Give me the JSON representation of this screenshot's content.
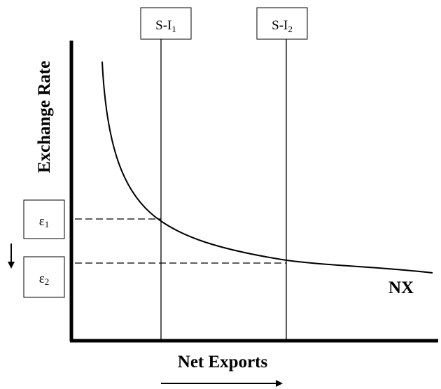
{
  "diagram": {
    "y_axis_label": "Exchange Rate",
    "x_axis_label": "Net Exports",
    "curve_label": "NX",
    "lines": [
      {
        "label": "S-I",
        "subscript": "1"
      },
      {
        "label": "S-I",
        "subscript": "2"
      }
    ],
    "levels": [
      {
        "label": "ε",
        "subscript": "1"
      },
      {
        "label": "ε",
        "subscript": "2"
      }
    ],
    "y_shift_arrow": "down",
    "x_shift_arrow": "right"
  }
}
